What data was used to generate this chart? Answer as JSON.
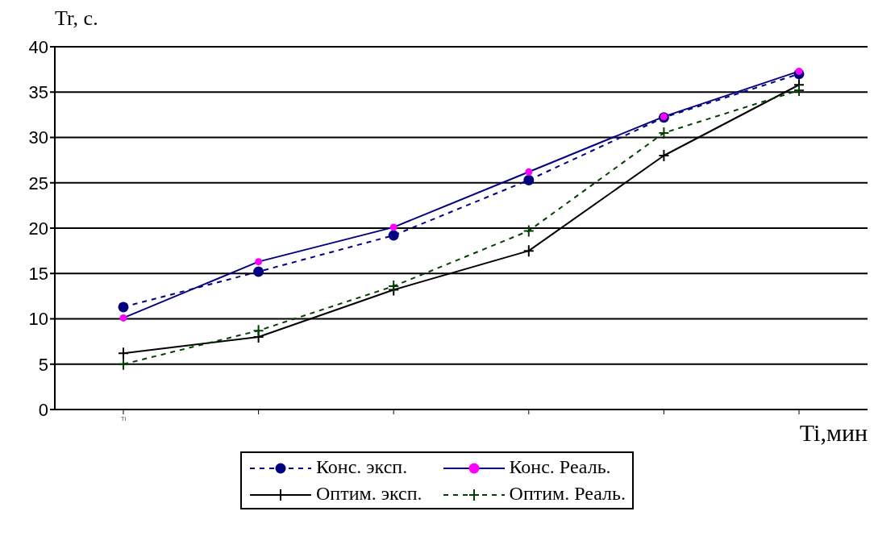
{
  "chart_data": {
    "type": "line",
    "ylabel": "Tr,  c.",
    "xlabel": "Ti,мин",
    "categories": [
      "Ti",
      null,
      null,
      null,
      null,
      null
    ],
    "ylim": [
      0,
      40
    ],
    "yticks": [
      0,
      5,
      10,
      15,
      20,
      25,
      30,
      35,
      40
    ],
    "grid": "y",
    "legend": "bottom",
    "series": [
      {
        "name": "Конс. эксп.",
        "color": "#000080",
        "values": [
          11.3,
          15.2,
          19.2,
          25.3,
          32.2,
          37
        ],
        "marker": "circle",
        "line_style": "dashed"
      },
      {
        "name": "Конс. Реаль.",
        "color": "#000080",
        "colors": [
          "#ff00ff",
          "#ff00ff",
          "#ff00ff",
          "#ff00ff",
          "#ff00ff",
          "#ff00ff"
        ],
        "values": [
          10.1,
          16.3,
          20.1,
          26.2,
          32.3,
          37.3
        ],
        "marker": "circle",
        "line_style": "solid"
      },
      {
        "name": "Оптим. эксп.",
        "color": "#000000",
        "values": [
          6.2,
          8,
          13.2,
          17.5,
          28,
          35.8
        ],
        "marker": "cross",
        "line_style": "solid"
      },
      {
        "name": "Оптим. Реаль.",
        "color": "#004000",
        "values": [
          5,
          8.7,
          13.6,
          19.7,
          30.5,
          35.2
        ],
        "marker": "cross",
        "line_style": "dashed"
      }
    ]
  }
}
